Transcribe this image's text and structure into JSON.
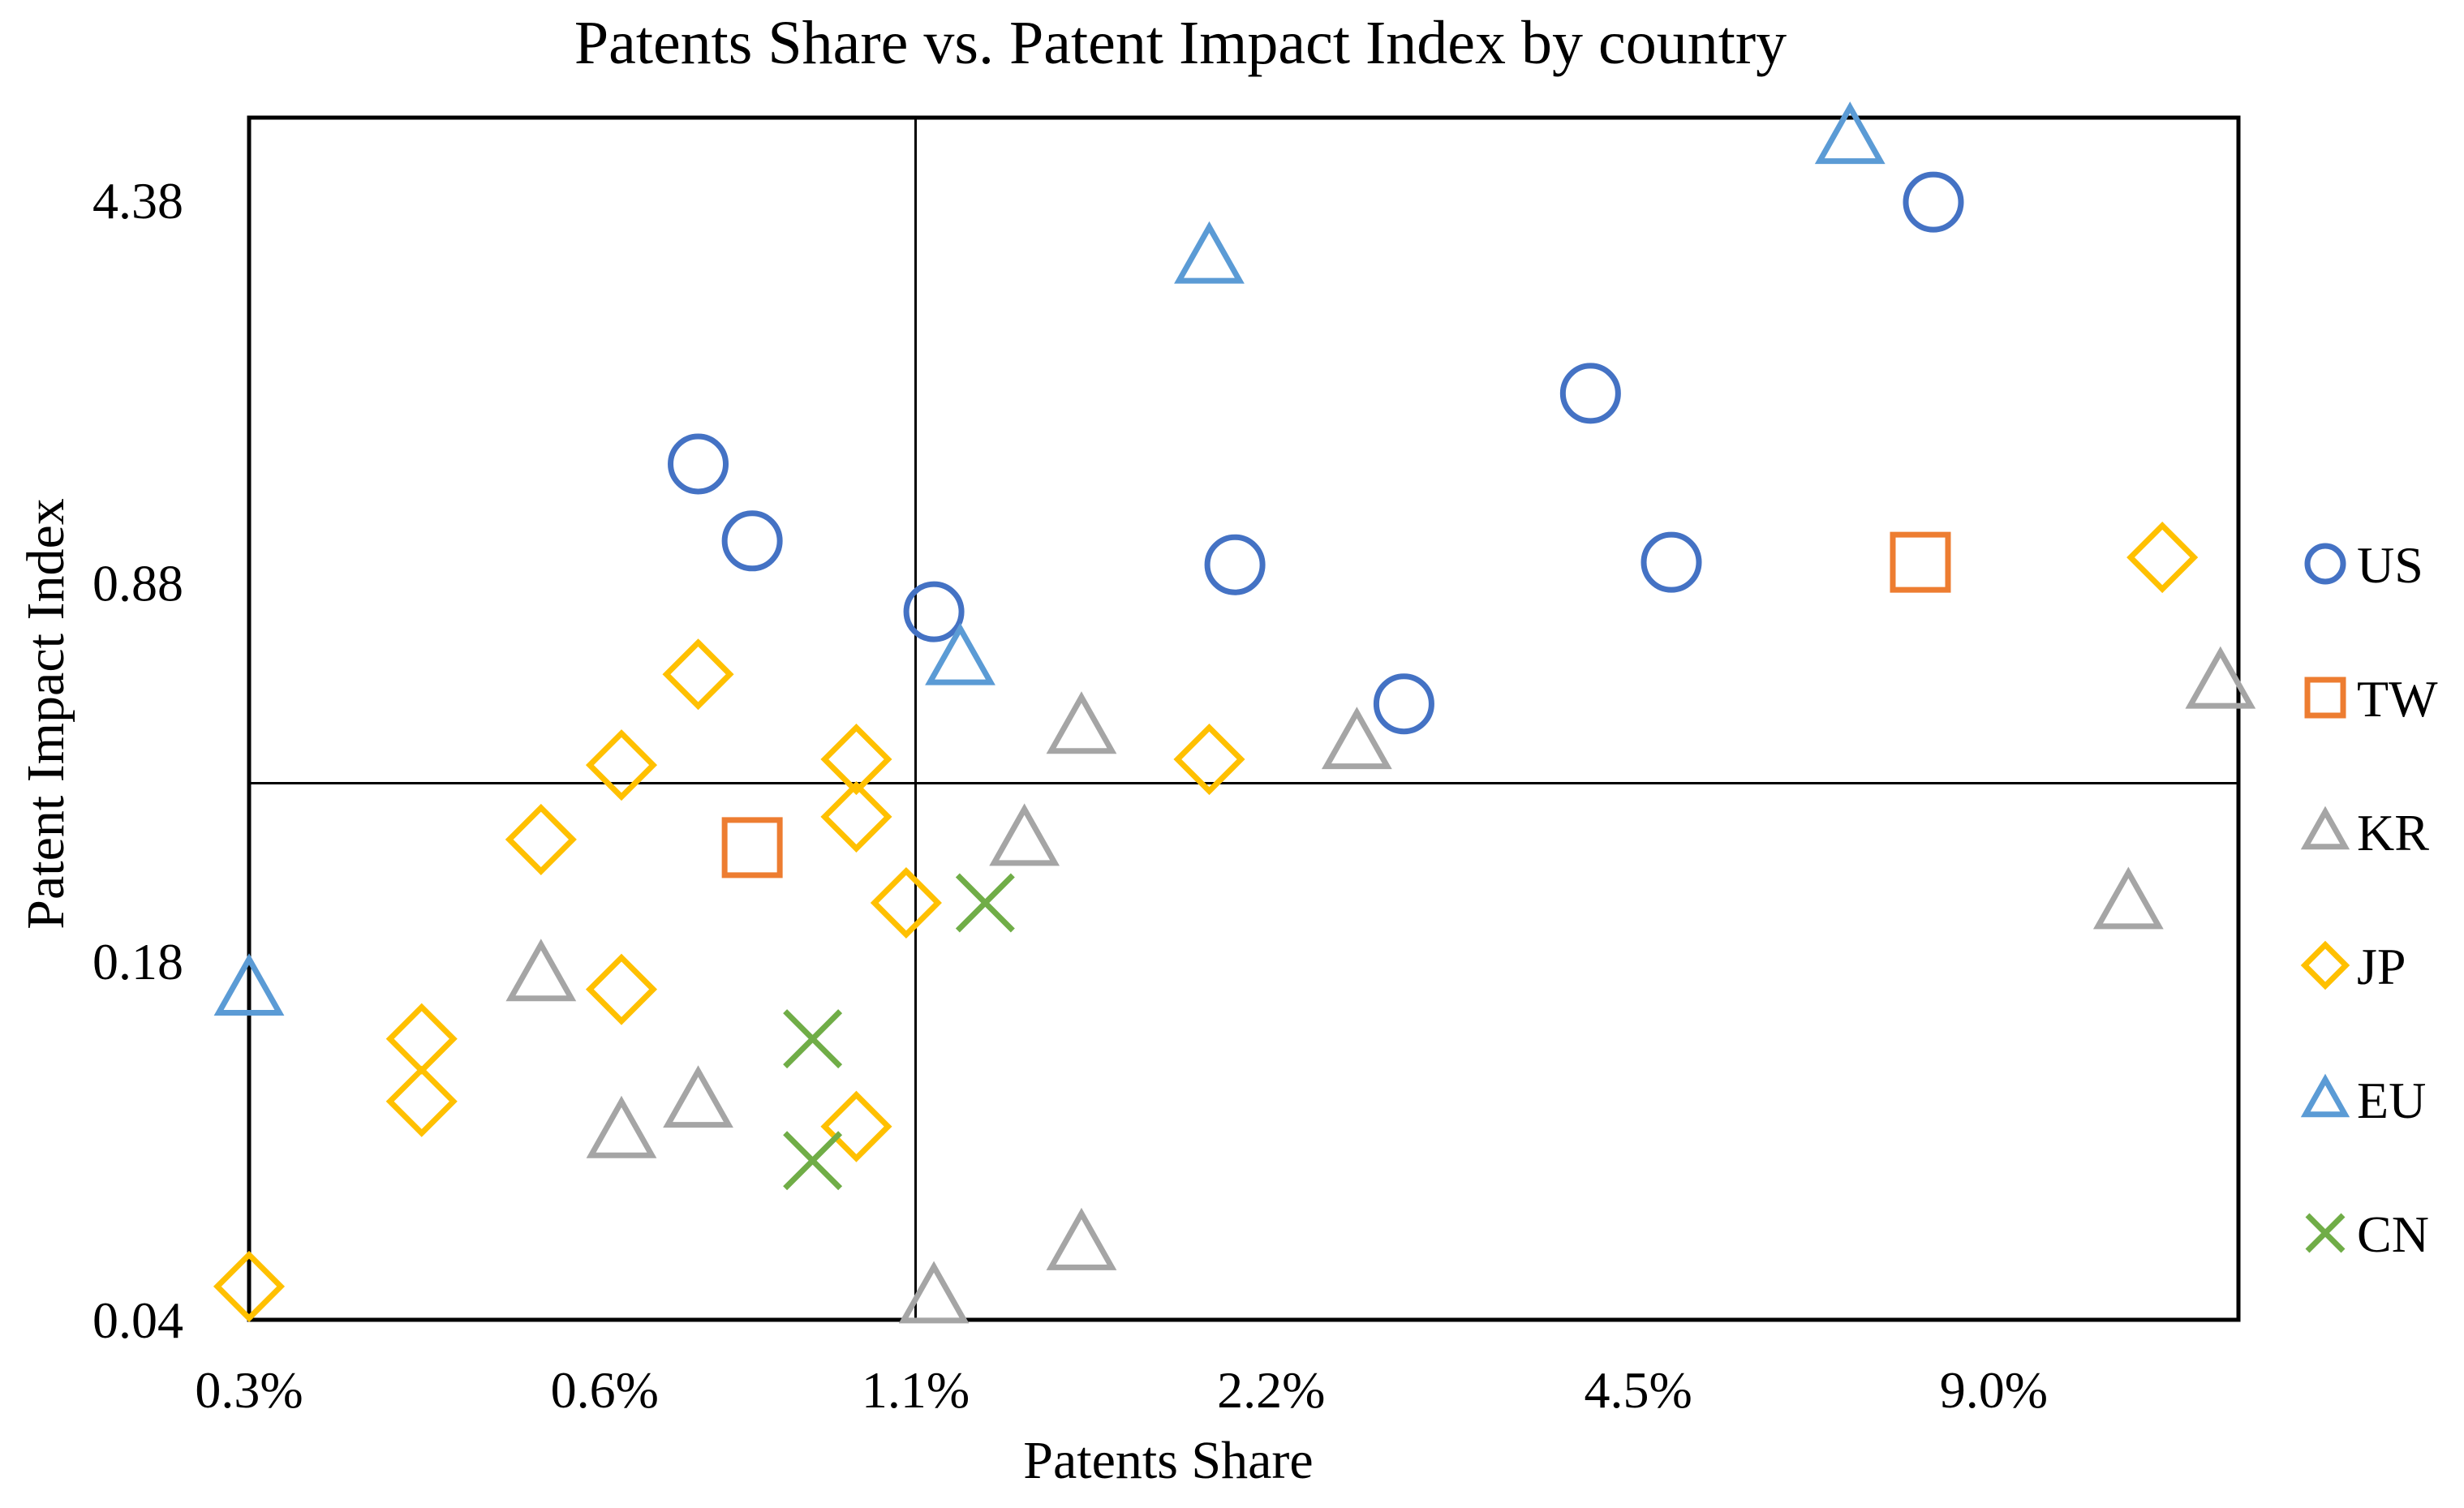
{
  "chart_data": {
    "type": "scatter",
    "title": "Patents Share vs. Patent Impact Index by country",
    "xlabel": "Patents Share",
    "ylabel": "Patent Impact Index",
    "x_scale": "log",
    "y_scale": "log",
    "x_ticks": [
      {
        "value": 0.3,
        "label": "0.3%"
      },
      {
        "value": 0.6,
        "label": "0.6%"
      },
      {
        "value": 1.1,
        "label": "1.1%"
      },
      {
        "value": 2.2,
        "label": "2.2%"
      },
      {
        "value": 4.5,
        "label": "4.5%"
      },
      {
        "value": 9.0,
        "label": "9.0%"
      }
    ],
    "y_ticks": [
      {
        "value": 0.04,
        "label": "0.04"
      },
      {
        "value": 0.18,
        "label": "0.18"
      },
      {
        "value": 0.88,
        "label": "0.88"
      },
      {
        "value": 4.38,
        "label": "4.38"
      }
    ],
    "xlim": [
      0.3,
      14.5
    ],
    "ylim": [
      0.04,
      6.2
    ],
    "reference_lines": {
      "x": 1.1,
      "y": 0.38
    },
    "grid": false,
    "legend_position": "right",
    "series": [
      {
        "name": "US",
        "marker": "circle",
        "color": "#4472C4",
        "points": [
          [
            0.72,
            1.45
          ],
          [
            0.8,
            1.05
          ],
          [
            1.14,
            0.78
          ],
          [
            2.05,
            0.95
          ],
          [
            2.85,
            0.53
          ],
          [
            4.1,
            1.95
          ],
          [
            4.8,
            0.96
          ],
          [
            8.0,
            4.35
          ]
        ]
      },
      {
        "name": "TW",
        "marker": "square",
        "color": "#ED7D31",
        "points": [
          [
            0.8,
            0.29
          ],
          [
            7.8,
            0.96
          ]
        ]
      },
      {
        "name": "KR",
        "marker": "triangle",
        "color": "#A5A5A5",
        "points": [
          [
            0.53,
            0.17
          ],
          [
            0.62,
            0.088
          ],
          [
            0.72,
            0.1
          ],
          [
            1.14,
            0.044
          ],
          [
            1.36,
            0.3
          ],
          [
            1.52,
            0.48
          ],
          [
            1.52,
            0.055
          ],
          [
            2.6,
            0.45
          ],
          [
            11.7,
            0.23
          ],
          [
            14.0,
            0.58
          ]
        ]
      },
      {
        "name": "JP",
        "marker": "diamond",
        "color": "#FFC000",
        "points": [
          [
            0.3,
            0.046
          ],
          [
            0.42,
            0.13
          ],
          [
            0.42,
            0.1
          ],
          [
            0.53,
            0.3
          ],
          [
            0.62,
            0.41
          ],
          [
            0.62,
            0.16
          ],
          [
            0.72,
            0.6
          ],
          [
            0.98,
            0.42
          ],
          [
            0.98,
            0.33
          ],
          [
            0.98,
            0.09
          ],
          [
            1.08,
            0.23
          ],
          [
            1.95,
            0.42
          ],
          [
            12.5,
            0.98
          ]
        ]
      },
      {
        "name": "EU",
        "marker": "triangle",
        "color": "#5B9BD5",
        "points": [
          [
            0.3,
            0.16
          ],
          [
            1.2,
            0.64
          ],
          [
            1.95,
            3.45
          ],
          [
            6.8,
            5.7
          ]
        ]
      },
      {
        "name": "CN",
        "marker": "x",
        "color": "#70AD47",
        "points": [
          [
            0.9,
            0.13
          ],
          [
            0.9,
            0.078
          ],
          [
            1.26,
            0.23
          ]
        ]
      }
    ]
  }
}
